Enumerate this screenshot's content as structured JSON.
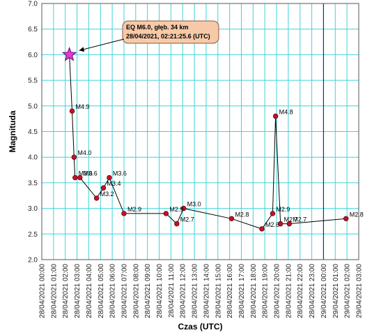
{
  "chart_data": {
    "type": "scatter",
    "title": "",
    "xlabel": "Czas (UTC)",
    "ylabel": "Magnituda",
    "ylim": [
      2.0,
      7.0
    ],
    "y_ticks": [
      "2.0",
      "2.5",
      "3.0",
      "3.5",
      "4.0",
      "4.5",
      "5.0",
      "5.5",
      "6.0",
      "6.5",
      "7.0"
    ],
    "xlim_hours": [
      0,
      27
    ],
    "x_ticks": [
      "28/04/2021 00:00",
      "28/04/2021 01:00",
      "28/04/2021 02:00",
      "28/04/2021 03:00",
      "28/04/2021 04:00",
      "28/04/2021 05:00",
      "28/04/2021 06:00",
      "28/04/2021 07:00",
      "28/04/2021 08:00",
      "28/04/2021 09:00",
      "28/04/2021 10:00",
      "28/04/2021 11:00",
      "28/04/2021 12:00",
      "28/04/2021 13:00",
      "28/04/2021 14:00",
      "28/04/2021 15:00",
      "28/04/2021 16:00",
      "28/04/2021 17:00",
      "28/04/2021 18:00",
      "28/04/2021 19:00",
      "28/04/2021 20:00",
      "28/04/2021 21:00",
      "28/04/2021 22:00",
      "28/04/2021 23:00",
      "29/04/2021 00:00",
      "29/04/2021 01:00",
      "29/04/2021 02:00",
      "29/04/2021 03:00"
    ],
    "grid": true,
    "day_boundary": "29/04/2021 00:00",
    "mainshock": {
      "time": "28/04/2021 02:21",
      "magnitude": 6.0
    },
    "annotation": {
      "line1": "EQ M6.0, głęb. 34 km",
      "line2": "28/04/2021, 02:21:25.6 (UTC)"
    },
    "series": [
      {
        "points": [
          {
            "time": "28/04/2021 02:35",
            "m": 4.9,
            "label": "M4.9"
          },
          {
            "time": "28/04/2021 02:45",
            "m": 4.0,
            "label": "M4.0"
          },
          {
            "time": "28/04/2021 02:50",
            "m": 3.6,
            "label": "M3.6"
          },
          {
            "time": "28/04/2021 03:15",
            "m": 3.6,
            "label": "M3.6"
          },
          {
            "time": "28/04/2021 04:40",
            "m": 3.2,
            "label": "M3.2"
          },
          {
            "time": "28/04/2021 05:15",
            "m": 3.4,
            "label": "M3.4"
          },
          {
            "time": "28/04/2021 05:45",
            "m": 3.6,
            "label": "M3.6"
          },
          {
            "time": "28/04/2021 07:00",
            "m": 2.9,
            "label": "M2.9"
          },
          {
            "time": "28/04/2021 10:35",
            "m": 2.9,
            "label": "M2.9"
          },
          {
            "time": "28/04/2021 11:30",
            "m": 2.7,
            "label": "M2.7"
          },
          {
            "time": "28/04/2021 12:05",
            "m": 3.0,
            "label": "M3.0"
          },
          {
            "time": "28/04/2021 16:10",
            "m": 2.8,
            "label": "M2.8"
          },
          {
            "time": "28/04/2021 18:45",
            "m": 2.6,
            "label": "M2.6"
          },
          {
            "time": "28/04/2021 19:40",
            "m": 2.9,
            "label": "M2.9"
          },
          {
            "time": "28/04/2021 19:55",
            "m": 4.8,
            "label": "M4.8"
          },
          {
            "time": "28/04/2021 20:20",
            "m": 2.7,
            "label": "M2.7"
          },
          {
            "time": "28/04/2021 21:05",
            "m": 2.7,
            "label": "M2.7"
          },
          {
            "time": "29/04/2021 01:55",
            "m": 2.8,
            "label": "M2.8"
          }
        ]
      }
    ],
    "colors": {
      "grid": "#3fd3d8",
      "day_line": "#1a2a9c",
      "point_fill": "#c8102e",
      "point_stroke": "#5a0000",
      "line": "#000000",
      "star_fill": "#e23ad6",
      "star_stroke": "#6b0a72",
      "annotation_fill": "#f6c9a8",
      "annotation_stroke": "#8a5a3c"
    }
  }
}
